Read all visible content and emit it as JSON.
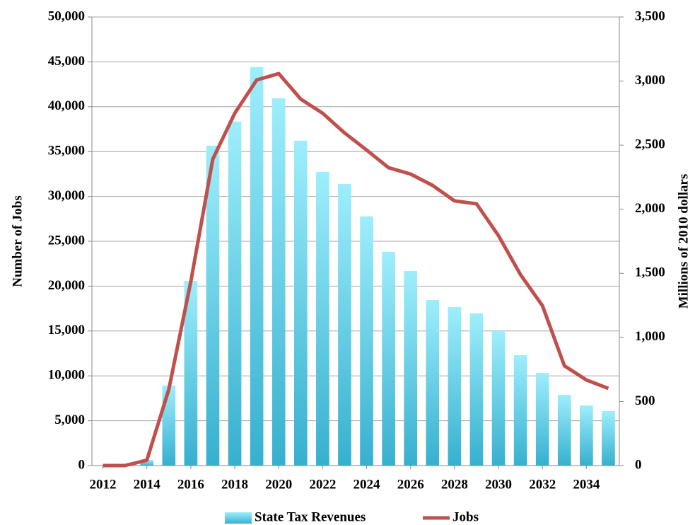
{
  "chart_data": {
    "type": "bar_line",
    "y_label": "Number of Jobs",
    "y2_label": "Millions of 2010 dollars",
    "x": [
      2012,
      2013,
      2014,
      2015,
      2016,
      2017,
      2018,
      2019,
      2020,
      2021,
      2022,
      2023,
      2024,
      2025,
      2026,
      2027,
      2028,
      2029,
      2030,
      2031,
      2032,
      2033,
      2034,
      2035
    ],
    "xlim": [
      2011.5,
      2035.5
    ],
    "xticks": [
      2012,
      2014,
      2016,
      2018,
      2020,
      2022,
      2024,
      2026,
      2028,
      2030,
      2032,
      2034
    ],
    "ylim": [
      0,
      50000
    ],
    "yticks": [
      0,
      {
        "value": 5000,
        "label": "5,000"
      },
      {
        "value": 10000,
        "label": "10,000"
      },
      {
        "value": 15000,
        "label": "15,000"
      },
      {
        "value": 20000,
        "label": "20,000"
      },
      {
        "value": 25000,
        "label": "25,000"
      },
      {
        "value": 30000,
        "label": "30,000"
      },
      {
        "value": 35000,
        "label": "35,000"
      },
      {
        "value": 40000,
        "label": "40,000"
      },
      {
        "value": 45000,
        "label": "45,000"
      },
      {
        "value": 50000,
        "label": "50,000"
      }
    ],
    "y2lim": [
      0,
      3500
    ],
    "y2ticks": [
      0,
      500,
      {
        "value": 1000,
        "label": "1,000"
      },
      {
        "value": 1500,
        "label": "1,500"
      },
      {
        "value": 2000,
        "label": "2,000"
      },
      {
        "value": 2500,
        "label": "2,500"
      },
      {
        "value": 3000,
        "label": "3,000"
      },
      {
        "value": 3500,
        "label": "3,500"
      }
    ],
    "grid": true,
    "legend": "bottom",
    "series": [
      {
        "name": "State Tax Revenues",
        "kind": "bar",
        "axis": "y2",
        "color": "#40b8d4",
        "values": [
          0,
          0,
          45,
          624,
          1441,
          2496,
          2684,
          3109,
          2866,
          2535,
          2292,
          2198,
          1944,
          1668,
          1519,
          1292,
          1237,
          1187,
          1049,
          861,
          723,
          552,
          469,
          425
        ]
      },
      {
        "name": "Jobs",
        "kind": "line",
        "axis": "y",
        "color": "#c0504d",
        "values": [
          0,
          0,
          600,
          8500,
          20500,
          34150,
          39270,
          42980,
          43690,
          40850,
          39270,
          37070,
          35170,
          33200,
          32490,
          31230,
          29500,
          29180,
          25630,
          21290,
          17820,
          11120,
          9540,
          8600
        ]
      }
    ]
  }
}
